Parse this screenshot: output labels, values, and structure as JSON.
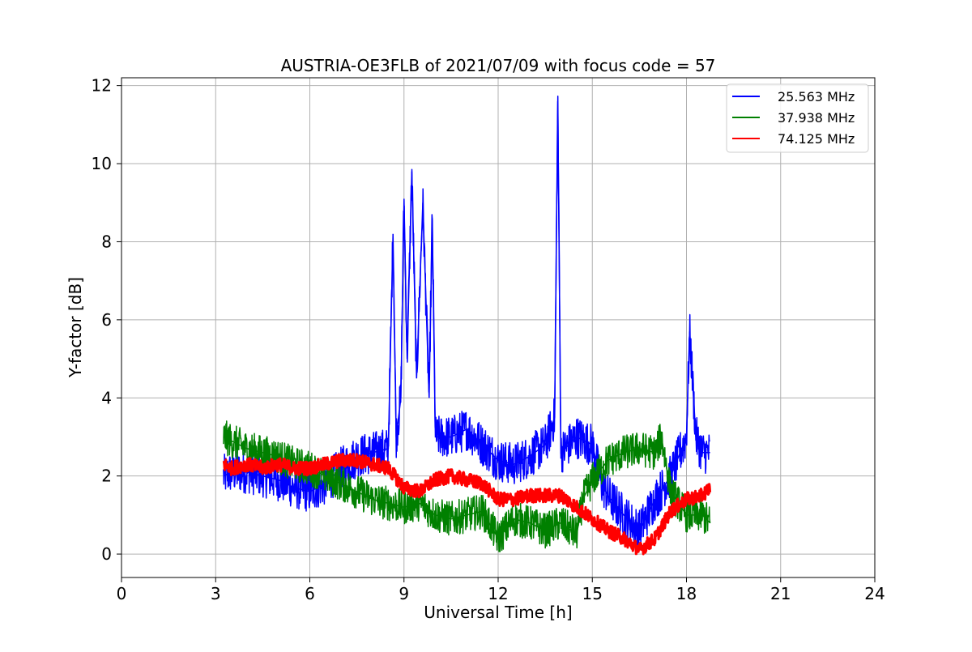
{
  "chart_data": {
    "type": "line",
    "title": "AUSTRIA-OE3FLB of 2021/07/09 with focus code = 57",
    "xlabel": "Universal Time [h]",
    "ylabel": "Y-factor [dB]",
    "xlim": [
      0,
      24
    ],
    "ylim": [
      -0.6,
      12.2
    ],
    "xticks": [
      0,
      3,
      6,
      9,
      12,
      15,
      18,
      21,
      24
    ],
    "yticks": [
      0,
      2,
      4,
      6,
      8,
      10,
      12
    ],
    "grid": true,
    "legend_position": "top-right",
    "series": [
      {
        "name": "25.563 MHz",
        "color": "#0000ff",
        "points": [
          [
            3.25,
            2.0
          ],
          [
            3.5,
            2.1
          ],
          [
            4.0,
            2.1
          ],
          [
            4.5,
            2.0
          ],
          [
            5.0,
            1.9
          ],
          [
            5.5,
            1.7
          ],
          [
            6.0,
            1.6
          ],
          [
            6.5,
            1.8
          ],
          [
            7.0,
            2.2
          ],
          [
            7.5,
            2.5
          ],
          [
            8.0,
            2.6
          ],
          [
            8.5,
            2.7
          ],
          [
            8.65,
            8.2
          ],
          [
            8.75,
            3.0
          ],
          [
            8.9,
            4.0
          ],
          [
            9.0,
            9.1
          ],
          [
            9.1,
            5.0
          ],
          [
            9.25,
            9.8
          ],
          [
            9.4,
            4.5
          ],
          [
            9.6,
            9.0
          ],
          [
            9.8,
            4.0
          ],
          [
            9.9,
            8.6
          ],
          [
            10.0,
            3.0
          ],
          [
            10.5,
            3.0
          ],
          [
            11.0,
            3.2
          ],
          [
            11.5,
            2.8
          ],
          [
            12.0,
            2.4
          ],
          [
            12.5,
            2.3
          ],
          [
            13.0,
            2.5
          ],
          [
            13.5,
            2.8
          ],
          [
            13.8,
            3.5
          ],
          [
            13.9,
            11.6
          ],
          [
            14.0,
            2.6
          ],
          [
            14.5,
            3.0
          ],
          [
            15.0,
            2.8
          ],
          [
            15.3,
            1.8
          ],
          [
            15.5,
            1.5
          ],
          [
            16.0,
            1.0
          ],
          [
            16.5,
            0.6
          ],
          [
            17.0,
            1.4
          ],
          [
            17.5,
            2.0
          ],
          [
            18.0,
            3.0
          ],
          [
            18.1,
            5.7
          ],
          [
            18.3,
            3.0
          ],
          [
            18.5,
            2.6
          ],
          [
            18.75,
            2.6
          ]
        ]
      },
      {
        "name": "37.938 MHz",
        "color": "#008000",
        "points": [
          [
            3.25,
            3.0
          ],
          [
            3.5,
            2.9
          ],
          [
            4.0,
            2.7
          ],
          [
            4.5,
            2.6
          ],
          [
            5.0,
            2.5
          ],
          [
            5.5,
            2.3
          ],
          [
            6.0,
            2.2
          ],
          [
            6.5,
            2.0
          ],
          [
            7.0,
            1.8
          ],
          [
            7.5,
            1.6
          ],
          [
            8.0,
            1.4
          ],
          [
            8.5,
            1.3
          ],
          [
            9.0,
            1.2
          ],
          [
            9.5,
            1.3
          ],
          [
            10.0,
            1.0
          ],
          [
            10.5,
            0.9
          ],
          [
            11.0,
            1.0
          ],
          [
            11.5,
            1.1
          ],
          [
            12.0,
            0.4
          ],
          [
            12.5,
            0.9
          ],
          [
            13.0,
            0.8
          ],
          [
            13.5,
            0.6
          ],
          [
            14.0,
            0.8
          ],
          [
            14.5,
            0.5
          ],
          [
            14.7,
            1.4
          ],
          [
            15.0,
            1.9
          ],
          [
            15.5,
            2.4
          ],
          [
            16.0,
            2.6
          ],
          [
            16.5,
            2.7
          ],
          [
            17.0,
            2.6
          ],
          [
            17.2,
            3.0
          ],
          [
            17.5,
            1.6
          ],
          [
            18.0,
            1.0
          ],
          [
            18.5,
            1.0
          ],
          [
            18.75,
            0.8
          ]
        ]
      },
      {
        "name": "74.125 MHz",
        "color": "#ff0000",
        "points": [
          [
            3.25,
            2.3
          ],
          [
            3.5,
            2.2
          ],
          [
            4.0,
            2.3
          ],
          [
            4.5,
            2.2
          ],
          [
            5.0,
            2.3
          ],
          [
            5.5,
            2.2
          ],
          [
            6.0,
            2.2
          ],
          [
            6.5,
            2.3
          ],
          [
            7.0,
            2.4
          ],
          [
            7.5,
            2.4
          ],
          [
            8.0,
            2.3
          ],
          [
            8.5,
            2.2
          ],
          [
            9.0,
            1.7
          ],
          [
            9.5,
            1.6
          ],
          [
            10.0,
            1.9
          ],
          [
            10.5,
            2.0
          ],
          [
            11.0,
            1.9
          ],
          [
            11.5,
            1.8
          ],
          [
            12.0,
            1.4
          ],
          [
            12.5,
            1.4
          ],
          [
            13.0,
            1.5
          ],
          [
            13.5,
            1.5
          ],
          [
            14.0,
            1.5
          ],
          [
            14.5,
            1.2
          ],
          [
            15.0,
            0.9
          ],
          [
            15.5,
            0.6
          ],
          [
            16.0,
            0.4
          ],
          [
            16.5,
            0.1
          ],
          [
            17.0,
            0.4
          ],
          [
            17.5,
            1.1
          ],
          [
            18.0,
            1.4
          ],
          [
            18.5,
            1.5
          ],
          [
            18.75,
            1.7
          ]
        ]
      }
    ]
  }
}
